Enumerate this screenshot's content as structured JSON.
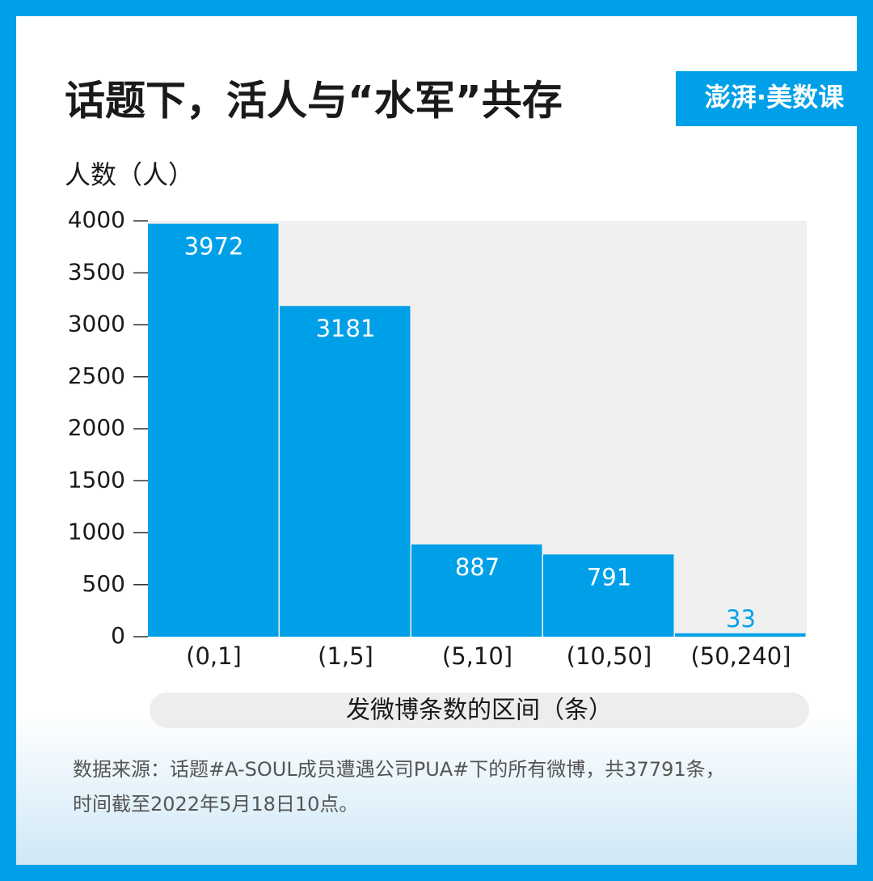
{
  "chart_data": {
    "type": "bar",
    "title": "话题下，活人与“水军”共存",
    "logo": "澎湃·美数课",
    "y_label": "人数（人）",
    "x_label": "发微博条数的区间（条）",
    "categories": [
      "(0,1]",
      "(1,5]",
      "(5,10]",
      "(10,50]",
      "(50,240]"
    ],
    "values": [
      3972,
      3181,
      887,
      791,
      33
    ],
    "color": "#00a0e9",
    "ylim": [
      0,
      4000
    ],
    "yticks": [
      0,
      500,
      1000,
      1500,
      2000,
      2500,
      3000,
      3500,
      4000
    ],
    "source": [
      "数据来源：话题#A-SOUL成员遭遇公司PUA#下的所有微博，共37791条，",
      "时间截至2022年5月18日10点。"
    ]
  }
}
